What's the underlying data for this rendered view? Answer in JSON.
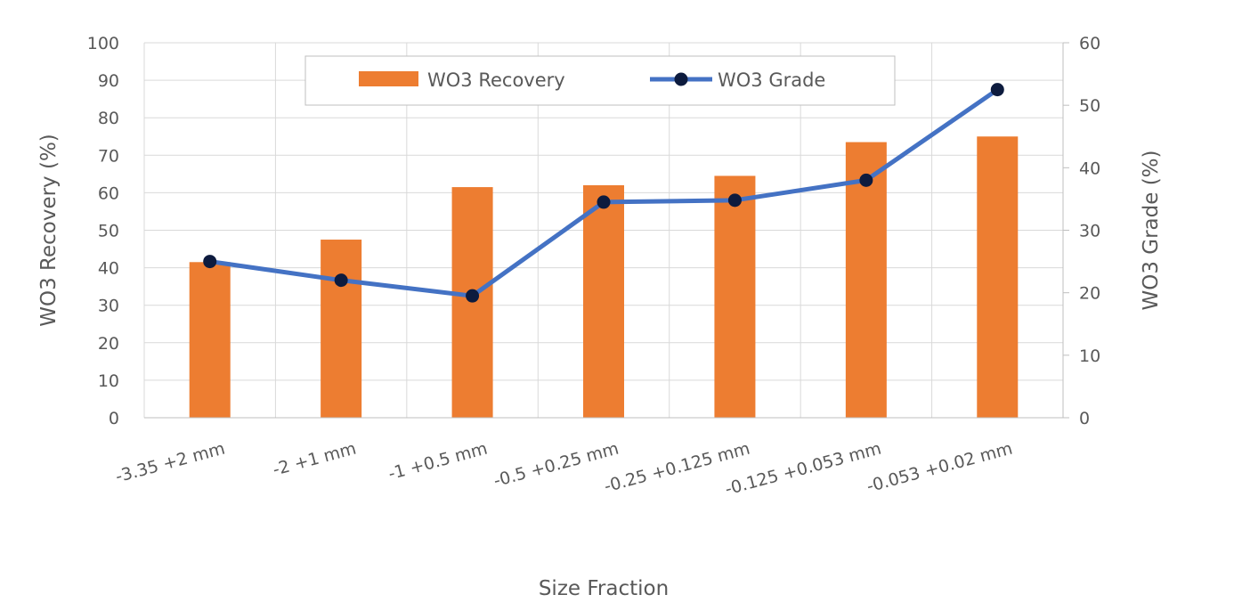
{
  "chart_data": {
    "type": "bar",
    "title": "",
    "xlabel": "Size Fraction",
    "ylabel": "WO3 Recovery (%)",
    "y2label": "WO3 Grade (%)",
    "categories": [
      "-3.35 +2 mm",
      "-2 +1 mm",
      "-1 +0.5 mm",
      "-0.5 +0.25 mm",
      "-0.25 +0.125 mm",
      "-0.125 +0.053 mm",
      "-0.053 +0.02 mm"
    ],
    "ylim": [
      0,
      100
    ],
    "y2lim": [
      0,
      60
    ],
    "yticks": [
      "0",
      "10",
      "20",
      "30",
      "40",
      "50",
      "60",
      "70",
      "80",
      "90",
      "100"
    ],
    "y2ticks": [
      "0",
      "10",
      "20",
      "30",
      "40",
      "50",
      "60"
    ],
    "grid": true,
    "legend_position": "top-center",
    "series": [
      {
        "name": "WO3 Recovery",
        "type": "bar",
        "axis": "left",
        "color": "#ED7D31",
        "values": [
          41.5,
          47.5,
          61.5,
          62,
          64.5,
          73.5,
          75
        ]
      },
      {
        "name": "WO3 Grade",
        "type": "line",
        "axis": "right",
        "color": "#4472C4",
        "marker_color": "#0D1B3E",
        "values": [
          25,
          22,
          19.5,
          34.5,
          34.8,
          38,
          52.5
        ]
      }
    ]
  }
}
